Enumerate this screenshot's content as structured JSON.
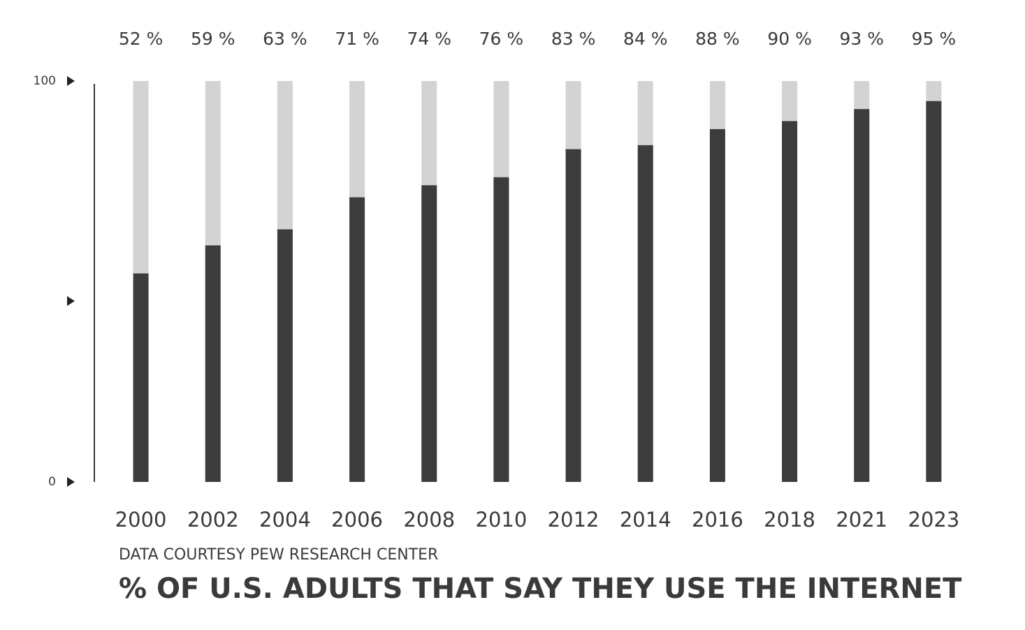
{
  "chart_data": {
    "type": "bar",
    "title": "% OF U.S. ADULTS THAT SAY THEY USE THE INTERNET",
    "source": "DATA COURTESY PEW RESEARCH CENTER",
    "categories": [
      "2000",
      "2002",
      "2004",
      "2006",
      "2008",
      "2010",
      "2012",
      "2014",
      "2016",
      "2018",
      "2021",
      "2023"
    ],
    "values": [
      52,
      59,
      63,
      71,
      74,
      76,
      83,
      84,
      88,
      90,
      93,
      95
    ],
    "value_labels": [
      "52 %",
      "59 %",
      "63 %",
      "71 %",
      "74 %",
      "76 %",
      "83 %",
      "84 %",
      "88 %",
      "90 %",
      "93 %",
      "95 %"
    ],
    "color": "#3c3c3c",
    "track_color": "#d3d3d3",
    "ylim": [
      0,
      100
    ],
    "yticks": [
      0,
      100
    ]
  }
}
